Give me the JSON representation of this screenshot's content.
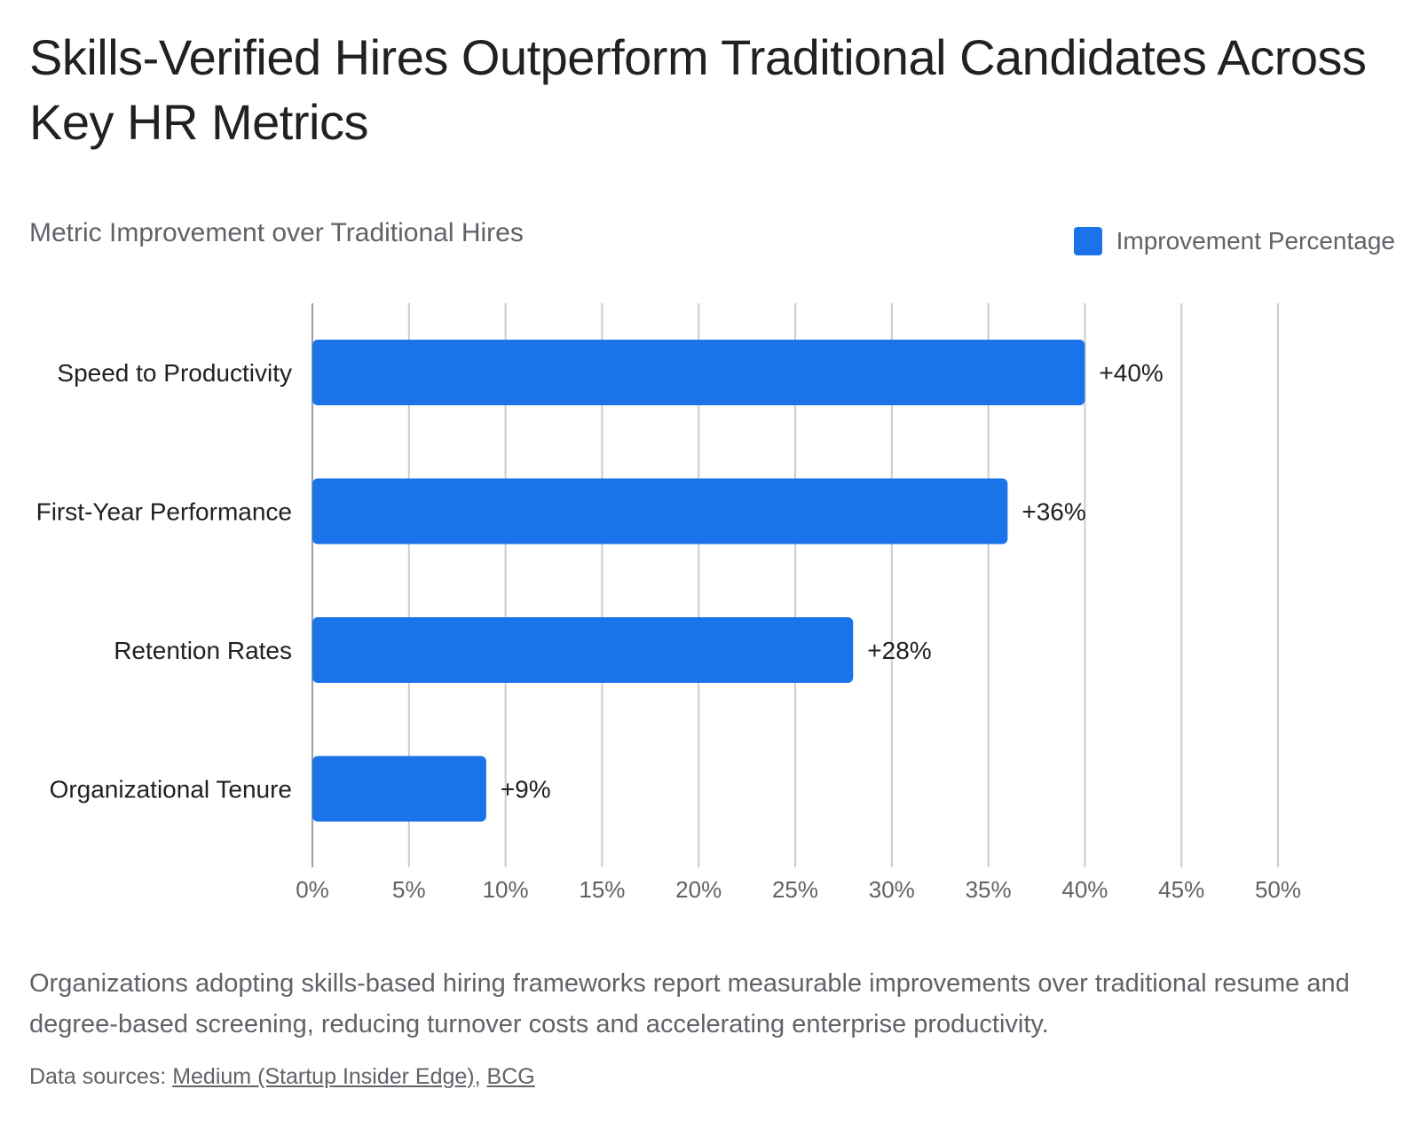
{
  "title": "Skills-Verified Hires Outperform Traditional Candidates Across Key HR Metrics",
  "subtitle": "Metric Improvement over Traditional Hires",
  "legend": {
    "label": "Improvement Percentage",
    "color": "#1a73e8"
  },
  "description": "Organizations adopting skills-based hiring frameworks report measurable improvements over traditional resume and degree-based screening, reducing turnover costs and accelerating enterprise productivity.",
  "sources": {
    "prefix": "Data sources:",
    "links": [
      "Medium (Startup Insider Edge)",
      "BCG"
    ],
    "separator": ","
  },
  "chart_data": {
    "type": "bar",
    "orientation": "horizontal",
    "categories": [
      "Speed to Productivity",
      "First-Year Performance",
      "Retention Rates",
      "Organizational Tenure"
    ],
    "series": [
      {
        "name": "Improvement Percentage",
        "values": [
          40,
          36,
          28,
          9
        ],
        "color": "#1a73e8"
      }
    ],
    "data_labels": [
      "+40%",
      "+36%",
      "+28%",
      "+9%"
    ],
    "x_ticks": [
      "0%",
      "5%",
      "10%",
      "15%",
      "20%",
      "25%",
      "30%",
      "35%",
      "40%",
      "45%",
      "50%"
    ],
    "xlim": [
      0,
      50
    ],
    "grid": true,
    "legend_position": "top-right"
  }
}
